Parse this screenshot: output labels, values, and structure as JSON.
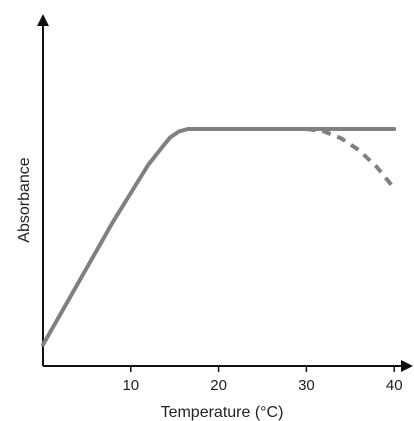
{
  "chart_data": {
    "type": "line",
    "title": "",
    "xlabel": "Temperature (°C)",
    "ylabel": "Absorbance",
    "xlim": [
      0,
      41
    ],
    "ylim": [
      0,
      1
    ],
    "x_ticks": [
      10,
      20,
      30,
      40
    ],
    "y_ticks": [],
    "grid": false,
    "legend": "none",
    "series": [
      {
        "style": "solid",
        "color": "#808080",
        "x": [
          0,
          2,
          4,
          6,
          8,
          10,
          12,
          13.5,
          14.5,
          15.5,
          16.5,
          20,
          25,
          30,
          35,
          40
        ],
        "y": [
          0.09,
          0.22,
          0.35,
          0.48,
          0.61,
          0.73,
          0.85,
          0.92,
          0.965,
          0.99,
          1.0,
          1.0,
          1.0,
          1.0,
          1.0,
          1.0
        ]
      },
      {
        "style": "dashed",
        "color": "#808080",
        "x": [
          30,
          32,
          34,
          36,
          38,
          40
        ],
        "y": [
          1.0,
          0.99,
          0.96,
          0.91,
          0.84,
          0.75
        ]
      }
    ]
  }
}
